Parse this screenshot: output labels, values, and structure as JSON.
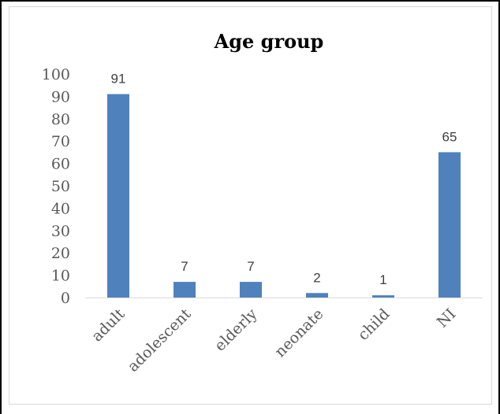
{
  "chart_data": {
    "type": "bar",
    "title": "Age group",
    "categories": [
      "adult",
      "adolescent",
      "elderly",
      "neonate",
      "child",
      "NI"
    ],
    "values": [
      91,
      7,
      7,
      2,
      1,
      65
    ],
    "ylim": [
      0,
      100
    ],
    "yticks": [
      0,
      10,
      20,
      30,
      40,
      50,
      60,
      70,
      80,
      90,
      100
    ],
    "grid": false,
    "data_labels": true,
    "bar_color": "#4f81bd"
  }
}
